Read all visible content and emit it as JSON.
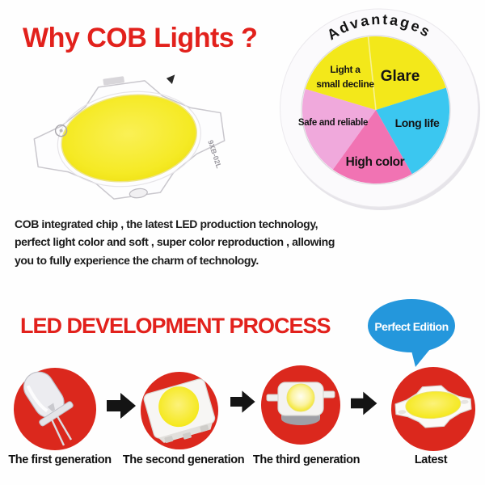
{
  "header": {
    "title": "Why COB Lights ?"
  },
  "advantages_chart": {
    "ring_label": "Advantages",
    "labels": {
      "glare": "Glare",
      "long_life": "Long life",
      "high_color": "High color",
      "safe_reliable": "Safe and reliable",
      "decline_line1": "Light a",
      "decline_line2": "small decline"
    }
  },
  "chart_data": {
    "type": "pie",
    "title": "Advantages",
    "categories": [
      "Glare",
      "Long life",
      "High color",
      "Safe and reliable",
      "Light a small decline"
    ],
    "values": [
      21.8,
      21.7,
      18.1,
      19.7,
      18.7
    ],
    "colors": [
      "#F3E81A",
      "#3BC7F0",
      "#F173B3",
      "#F0A9DC",
      "#F3E81A"
    ],
    "start_angle_deg": -6,
    "labels_position": "inside"
  },
  "description": {
    "line1": "COB integrated chip , the latest LED production technology,",
    "line2": "perfect light color and soft , super color reproduction , allowing",
    "line3": "you to fully experience the charm of technology."
  },
  "process": {
    "title": "LED DEVELOPMENT PROCESS",
    "badge": "Perfect Edition",
    "steps": [
      {
        "label": "The first generation"
      },
      {
        "label": "The second generation"
      },
      {
        "label": "The third generation"
      },
      {
        "label": "Latest"
      }
    ]
  },
  "colors": {
    "accent_red": "#E2211C",
    "circle_red": "#DB281D",
    "bubble_blue": "#2497DC",
    "chip_yellow": "#F5EA25"
  }
}
